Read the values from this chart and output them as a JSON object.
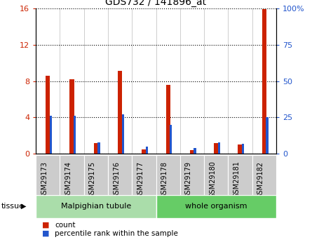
{
  "title": "GDS732 / 141896_at",
  "categories": [
    "GSM29173",
    "GSM29174",
    "GSM29175",
    "GSM29176",
    "GSM29177",
    "GSM29178",
    "GSM29179",
    "GSM29180",
    "GSM29181",
    "GSM29182"
  ],
  "count_values": [
    8.6,
    8.2,
    1.2,
    9.1,
    0.5,
    7.6,
    0.4,
    1.2,
    1.0,
    15.9
  ],
  "percentile_values": [
    26,
    26,
    8,
    27,
    5,
    20,
    4,
    8,
    7,
    25
  ],
  "ylim_left": [
    0,
    16
  ],
  "ylim_right": [
    0,
    100
  ],
  "yticks_left": [
    0,
    4,
    8,
    12,
    16
  ],
  "yticks_right": [
    0,
    25,
    50,
    75,
    100
  ],
  "count_color": "#cc2200",
  "percentile_color": "#2255cc",
  "tissue_groups": [
    {
      "label": "Malpighian tubule",
      "start": 0,
      "end": 4,
      "color": "#aaddaa"
    },
    {
      "label": "whole organism",
      "start": 5,
      "end": 9,
      "color": "#66cc66"
    }
  ],
  "legend_count_label": "count",
  "legend_percentile_label": "percentile rank within the sample",
  "tick_label_color_left": "#cc2200",
  "tick_label_color_right": "#2255cc",
  "bar_category_bg": "#cccccc",
  "grid_linestyle": "dotted"
}
